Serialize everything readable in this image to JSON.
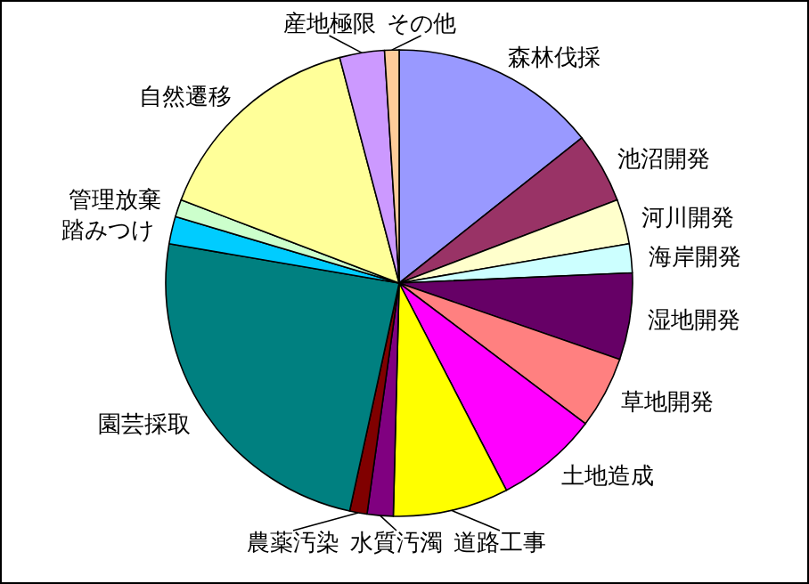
{
  "chart_data": {
    "type": "pie",
    "categories": [
      "森林伐採",
      "池沼開発",
      "河川開発",
      "海岸開発",
      "湿地開発",
      "草地開発",
      "土地造成",
      "道路工事",
      "水質汚濁",
      "農薬汚染",
      "園芸採取",
      "踏みつけ",
      "管理放棄",
      "自然遷移",
      "産地極限",
      "その他"
    ],
    "values": [
      14.3,
      4.9,
      3.1,
      2.0,
      6.0,
      5.0,
      7.1,
      8.0,
      1.8,
      1.2,
      24.3,
      1.9,
      1.2,
      15.1,
      3.1,
      1.0
    ],
    "colors": [
      "#9999ff",
      "#993366",
      "#ffffcc",
      "#ccffff",
      "#660066",
      "#ff8080",
      "#ff00ff",
      "#ffff00",
      "#800080",
      "#800000",
      "#008080",
      "#00ccff",
      "#ccffcc",
      "#ffff99",
      "#cc99ff",
      "#ffcc99"
    ]
  }
}
